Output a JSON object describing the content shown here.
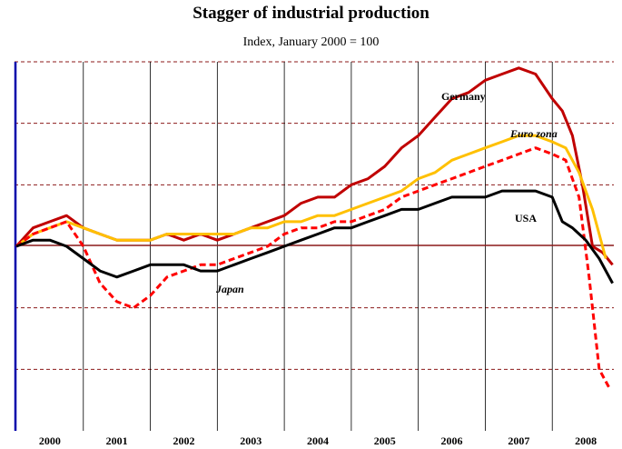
{
  "chart_data": {
    "type": "line",
    "title": "Stagger of industrial production",
    "subtitle": "Index, January 2000 = 100",
    "x_tick_labels": [
      "2000",
      "2001",
      "2002",
      "2003",
      "2004",
      "2005",
      "2006",
      "2007",
      "2008"
    ],
    "baseline": 100,
    "ylim": [
      70,
      130
    ],
    "grid": "horizontal dashed, vertical solid at year boundaries",
    "series": [
      {
        "name": "Germany",
        "color": "#c00000",
        "style": "solid",
        "x": [
          2000.0,
          2000.25,
          2000.5,
          2000.75,
          2001.0,
          2001.25,
          2001.5,
          2001.75,
          2002.0,
          2002.25,
          2002.5,
          2002.75,
          2003.0,
          2003.25,
          2003.5,
          2003.75,
          2004.0,
          2004.25,
          2004.5,
          2004.75,
          2005.0,
          2005.25,
          2005.5,
          2005.75,
          2006.0,
          2006.25,
          2006.5,
          2006.75,
          2007.0,
          2007.25,
          2007.5,
          2007.75,
          2008.0,
          2008.15,
          2008.3,
          2008.45,
          2008.6,
          2008.75,
          2008.9
        ],
        "values": [
          100,
          103,
          104,
          105,
          103,
          102,
          101,
          101,
          101,
          102,
          101,
          102,
          101,
          102,
          103,
          104,
          105,
          107,
          108,
          108,
          110,
          111,
          113,
          116,
          118,
          121,
          124,
          125,
          127,
          128,
          129,
          128,
          124,
          122,
          118,
          110,
          100,
          99,
          97
        ]
      },
      {
        "name": "Euro zona",
        "color": "#ffc000",
        "style": "solid",
        "x": [
          2000.0,
          2000.25,
          2000.5,
          2000.75,
          2001.0,
          2001.25,
          2001.5,
          2001.75,
          2002.0,
          2002.25,
          2002.5,
          2002.75,
          2003.0,
          2003.25,
          2003.5,
          2003.75,
          2004.0,
          2004.25,
          2004.5,
          2004.75,
          2005.0,
          2005.25,
          2005.5,
          2005.75,
          2006.0,
          2006.25,
          2006.5,
          2006.75,
          2007.0,
          2007.25,
          2007.5,
          2007.75,
          2008.0,
          2008.2,
          2008.4,
          2008.6,
          2008.8
        ],
        "values": [
          100,
          102,
          103,
          104,
          103,
          102,
          101,
          101,
          101,
          102,
          102,
          102,
          102,
          102,
          103,
          103,
          104,
          104,
          105,
          105,
          106,
          107,
          108,
          109,
          111,
          112,
          114,
          115,
          116,
          117,
          118,
          118,
          117,
          116,
          112,
          106,
          98
        ]
      },
      {
        "name": "Japan",
        "color": "#ff0000",
        "style": "dashed",
        "x": [
          2000.0,
          2000.25,
          2000.5,
          2000.75,
          2001.0,
          2001.25,
          2001.5,
          2001.75,
          2002.0,
          2002.25,
          2002.5,
          2002.75,
          2003.0,
          2003.25,
          2003.5,
          2003.75,
          2004.0,
          2004.25,
          2004.5,
          2004.75,
          2005.0,
          2005.25,
          2005.5,
          2005.75,
          2006.0,
          2006.25,
          2006.5,
          2006.75,
          2007.0,
          2007.25,
          2007.5,
          2007.75,
          2008.0,
          2008.2,
          2008.4,
          2008.55,
          2008.7,
          2008.85
        ],
        "values": [
          100,
          102,
          103,
          104,
          100,
          94,
          91,
          90,
          92,
          95,
          96,
          97,
          97,
          98,
          99,
          100,
          102,
          103,
          103,
          104,
          104,
          105,
          106,
          108,
          109,
          110,
          111,
          112,
          113,
          114,
          115,
          116,
          115,
          114,
          108,
          95,
          80,
          77
        ]
      },
      {
        "name": "USA",
        "color": "#000000",
        "style": "solid",
        "x": [
          2000.0,
          2000.25,
          2000.5,
          2000.75,
          2001.0,
          2001.25,
          2001.5,
          2001.75,
          2002.0,
          2002.25,
          2002.5,
          2002.75,
          2003.0,
          2003.25,
          2003.5,
          2003.75,
          2004.0,
          2004.25,
          2004.5,
          2004.75,
          2005.0,
          2005.25,
          2005.5,
          2005.75,
          2006.0,
          2006.25,
          2006.5,
          2006.75,
          2007.0,
          2007.25,
          2007.5,
          2007.75,
          2008.0,
          2008.15,
          2008.3,
          2008.5,
          2008.7,
          2008.9
        ],
        "values": [
          100,
          101,
          101,
          100,
          98,
          96,
          95,
          96,
          97,
          97,
          97,
          96,
          96,
          97,
          98,
          99,
          100,
          101,
          102,
          103,
          103,
          104,
          105,
          106,
          106,
          107,
          108,
          108,
          108,
          109,
          109,
          109,
          108,
          104,
          103,
          101,
          98,
          94
        ]
      }
    ]
  }
}
